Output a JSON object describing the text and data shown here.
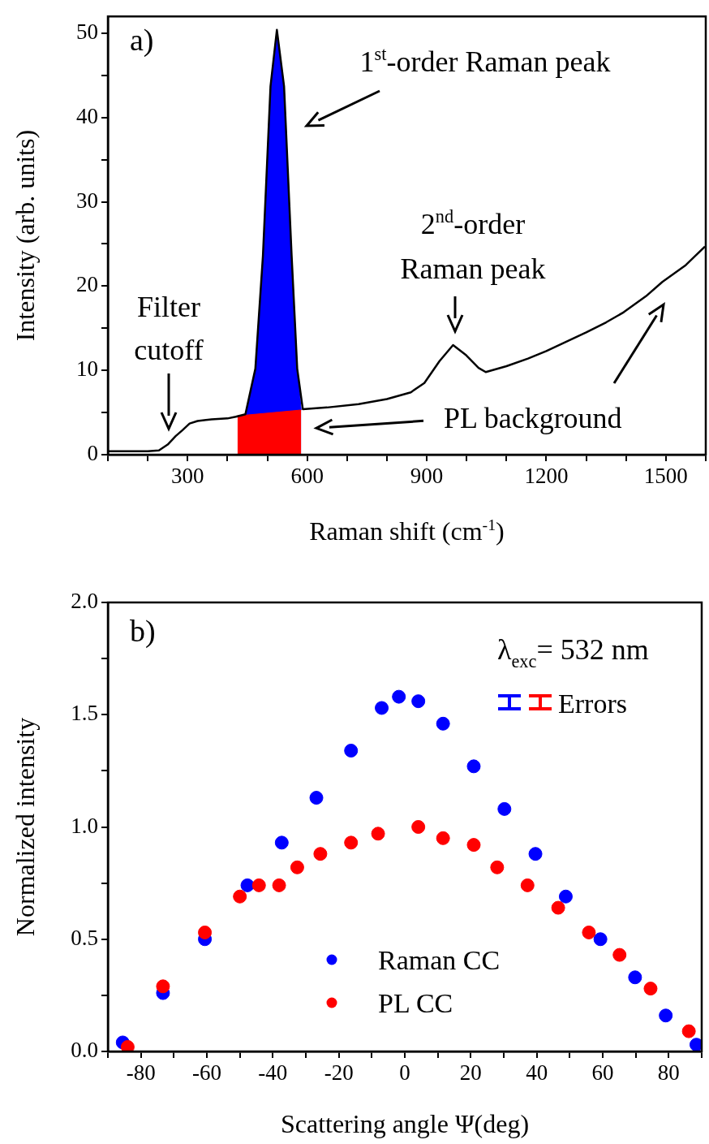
{
  "chart_data": [
    {
      "type": "line",
      "xlabel": "Raman shift (cm$^{-1}$)",
      "ylabel": "Intensity (arb. units)",
      "xlim": [
        100,
        1600
      ],
      "xticks": [
        {
          "value": 100,
          "label": null
        },
        {
          "value": 200,
          "label": null
        },
        300,
        {
          "value": 400,
          "label": null
        },
        {
          "value": 500,
          "label": null
        },
        600,
        {
          "value": 700,
          "label": null
        },
        {
          "value": 800,
          "label": null
        },
        900,
        {
          "value": 1000,
          "label": null
        },
        {
          "value": 1100,
          "label": null
        },
        1200,
        {
          "value": 1300,
          "label": null
        },
        {
          "value": 1400,
          "label": null
        },
        1500,
        {
          "value": 1600,
          "label": null
        }
      ],
      "ylim": [
        0,
        52
      ],
      "yticks": [
        0,
        {
          "value": 5,
          "label": null
        },
        10,
        {
          "value": 15,
          "label": null
        },
        20,
        {
          "value": 25,
          "label": null
        },
        30,
        {
          "value": 35,
          "label": null
        },
        40,
        {
          "value": 45,
          "label": null
        },
        50
      ],
      "series": [
        {
          "type": "area",
          "color": "#0000ff",
          "x": [
            430,
            445,
            470,
            489,
            508,
            524,
            542,
            561,
            575,
            585
          ],
          "values": [
            4.6,
            4.8,
            10.2,
            23.6,
            43.7,
            50.4,
            43.7,
            23.6,
            10.2,
            5.3
          ]
        },
        {
          "type": "area",
          "color": "#ff0000",
          "x": [
            425,
            585
          ],
          "values": [
            4.6,
            5.3
          ]
        },
        {
          "type": "line",
          "color": "#000000",
          "x": [
            100,
            150,
            200,
            228,
            250,
            270,
            287,
            305,
            325,
            360,
            400,
            421,
            445,
            470,
            489,
            508,
            524,
            542,
            561,
            575,
            589,
            650,
            729,
            800,
            860,
            894,
            932,
            966,
            999,
            1030,
            1048,
            1100,
            1154,
            1200,
            1250,
            1300,
            1350,
            1394,
            1450,
            1491,
            1550,
            1598
          ],
          "values": [
            0.4,
            0.4,
            0.4,
            0.5,
            1.2,
            2.2,
            2.9,
            3.7,
            4.0,
            4.2,
            4.3,
            4.5,
            4.8,
            10.2,
            23.6,
            43.7,
            50.4,
            43.7,
            23.6,
            10.2,
            5.4,
            5.6,
            6.0,
            6.6,
            7.4,
            8.5,
            11.1,
            13.0,
            11.8,
            10.3,
            9.8,
            10.5,
            11.4,
            12.3,
            13.4,
            14.5,
            15.7,
            16.9,
            18.8,
            20.5,
            22.5,
            24.7
          ]
        }
      ],
      "annotations": [
        "a)",
        "1$^{st}$-order Raman peak",
        "2$^{nd}$-order\nRaman peak",
        "Filter\ncutoff",
        "PL background"
      ]
    },
    {
      "type": "scatter",
      "xlabel": "Scattering angle Ψ(deg)",
      "ylabel": "Normalized intensity",
      "xlim": [
        -90,
        90
      ],
      "xticks": [
        {
          "value": -90,
          "label": null
        },
        -80,
        {
          "value": -70,
          "label": null
        },
        -60,
        {
          "value": -50,
          "label": null
        },
        -40,
        {
          "value": -30,
          "label": null
        },
        -20,
        {
          "value": -10,
          "label": null
        },
        0,
        {
          "value": 10,
          "label": null
        },
        20,
        {
          "value": 30,
          "label": null
        },
        40,
        {
          "value": 50,
          "label": null
        },
        60,
        {
          "value": 70,
          "label": null
        },
        80,
        {
          "value": 90,
          "label": null
        }
      ],
      "ylim": [
        0,
        2
      ],
      "yticks": [
        {
          "value": 0,
          "label": "0.0"
        },
        {
          "value": 0.25,
          "label": null
        },
        0.5,
        {
          "value": 0.75,
          "label": null
        },
        {
          "value": 1,
          "label": "1.0"
        },
        {
          "value": 1.25,
          "label": null
        },
        1.5,
        {
          "value": 1.75,
          "label": null
        },
        {
          "value": 2,
          "label": "2.0"
        }
      ],
      "marker": "circle",
      "legend": "bottom",
      "series": [
        {
          "name": "Raman CC",
          "color": "#0000ff",
          "x": [
            -85.5,
            -73.3,
            -60.6,
            -47.7,
            -37.3,
            -26.8,
            -16.3,
            -7.0,
            -1.8,
            4.1,
            11.6,
            20.9,
            30.2,
            39.6,
            48.8,
            59.3,
            69.8,
            79.1,
            88.4
          ],
          "values": [
            0.04,
            0.26,
            0.5,
            0.74,
            0.93,
            1.13,
            1.34,
            1.53,
            1.58,
            1.56,
            1.46,
            1.27,
            1.08,
            0.88,
            0.69,
            0.5,
            0.33,
            0.16,
            0.03
          ]
        },
        {
          "name": "PL CC",
          "color": "#ff0000",
          "x": [
            -84.0,
            -73.3,
            -60.6,
            -50.0,
            -44.2,
            -38.1,
            -32.6,
            -25.6,
            -16.3,
            -8.1,
            4.1,
            11.6,
            20.9,
            28.0,
            37.2,
            46.5,
            55.8,
            65.1,
            74.5,
            86.1
          ],
          "values": [
            0.02,
            0.29,
            0.53,
            0.69,
            0.74,
            0.74,
            0.82,
            0.88,
            0.93,
            0.97,
            1.0,
            0.95,
            0.92,
            0.82,
            0.74,
            0.64,
            0.53,
            0.43,
            0.28,
            0.09
          ]
        }
      ],
      "annotations": [
        "b)",
        "λ$_{exc}$= 532 nm",
        "Errors"
      ]
    }
  ]
}
